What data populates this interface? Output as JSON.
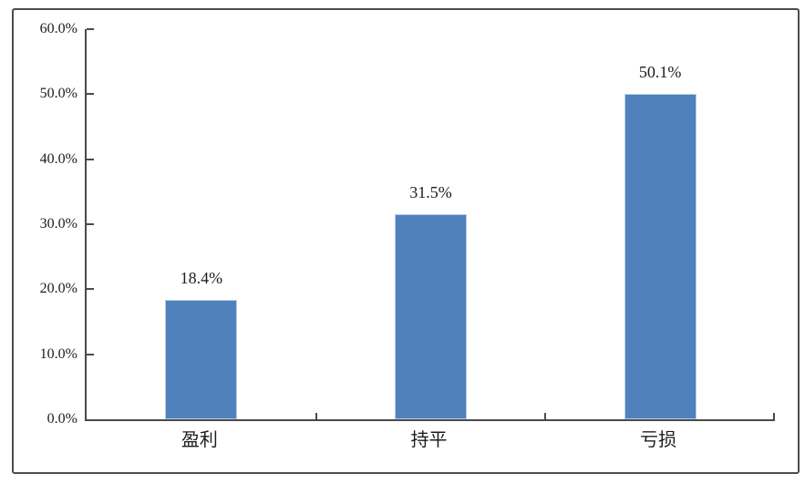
{
  "chart_data": {
    "type": "bar",
    "categories": [
      "盈利",
      "持平",
      "亏损"
    ],
    "values": [
      18.4,
      31.5,
      50.1
    ],
    "data_labels": [
      "18.4%",
      "31.5%",
      "50.1%"
    ],
    "y_tick_labels": [
      "0.0%",
      "10.0%",
      "20.0%",
      "30.0%",
      "40.0%",
      "50.0%",
      "60.0%"
    ],
    "y_tick_values": [
      0,
      10,
      20,
      30,
      40,
      50,
      60
    ],
    "ylim": [
      0,
      60
    ],
    "title": "",
    "xlabel": "",
    "ylabel": "",
    "grid": "off",
    "legend": "none",
    "colors": {
      "bar_fill": "#4f81bd",
      "bar_edge": "#b9cde5",
      "axis_line": "#4a4a4a",
      "frame_border": "#4d4d4d",
      "text": "#1c1c1c"
    }
  }
}
